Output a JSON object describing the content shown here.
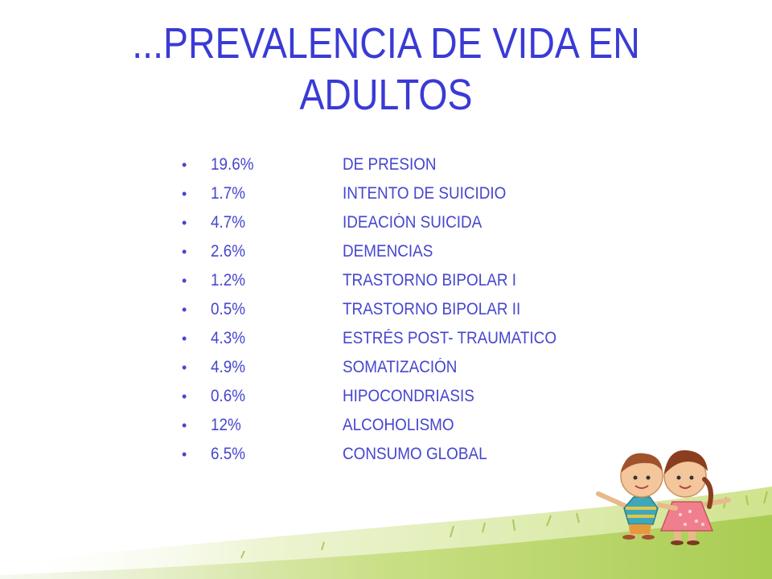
{
  "slide": {
    "title_line1": "...PREVALENCIA DE VIDA EN",
    "title_line2": "ADULTOS",
    "bullet_symbol": "•",
    "items": [
      {
        "value": "19.6%",
        "label": "DE PRESION"
      },
      {
        "value": "1.7%",
        "label": "INTENTO DE SUICIDIO"
      },
      {
        "value": "4.7%",
        "label": "IDEACIÓN SUICIDA"
      },
      {
        "value": "2.6%",
        "label": "DEMENCIAS"
      },
      {
        "value": "1.2%",
        "label": "TRASTORNO BIPOLAR I"
      },
      {
        "value": "0.5%",
        "label": "TRASTORNO BIPOLAR II"
      },
      {
        "value": "4.3%",
        "label": "ESTRÉS POST- TRAUMATICO"
      },
      {
        "value": "4.9%",
        "label": "SOMATIZACIÓN"
      },
      {
        "value": "0.6%",
        "label": "HIPOCONDRIASIS"
      },
      {
        "value": "12%",
        "label": "ALCOHOLISMO"
      },
      {
        "value": "6.5%",
        "label": "CONSUMO GLOBAL"
      }
    ]
  },
  "colors": {
    "title": "#3a3ad6",
    "text": "#4646cf",
    "grass_light": "#dbe9a8",
    "grass_mid": "#b6d36a",
    "grass_dark": "#8fb83c"
  },
  "decoration": {
    "illustration": "two-children-holding-hands"
  }
}
